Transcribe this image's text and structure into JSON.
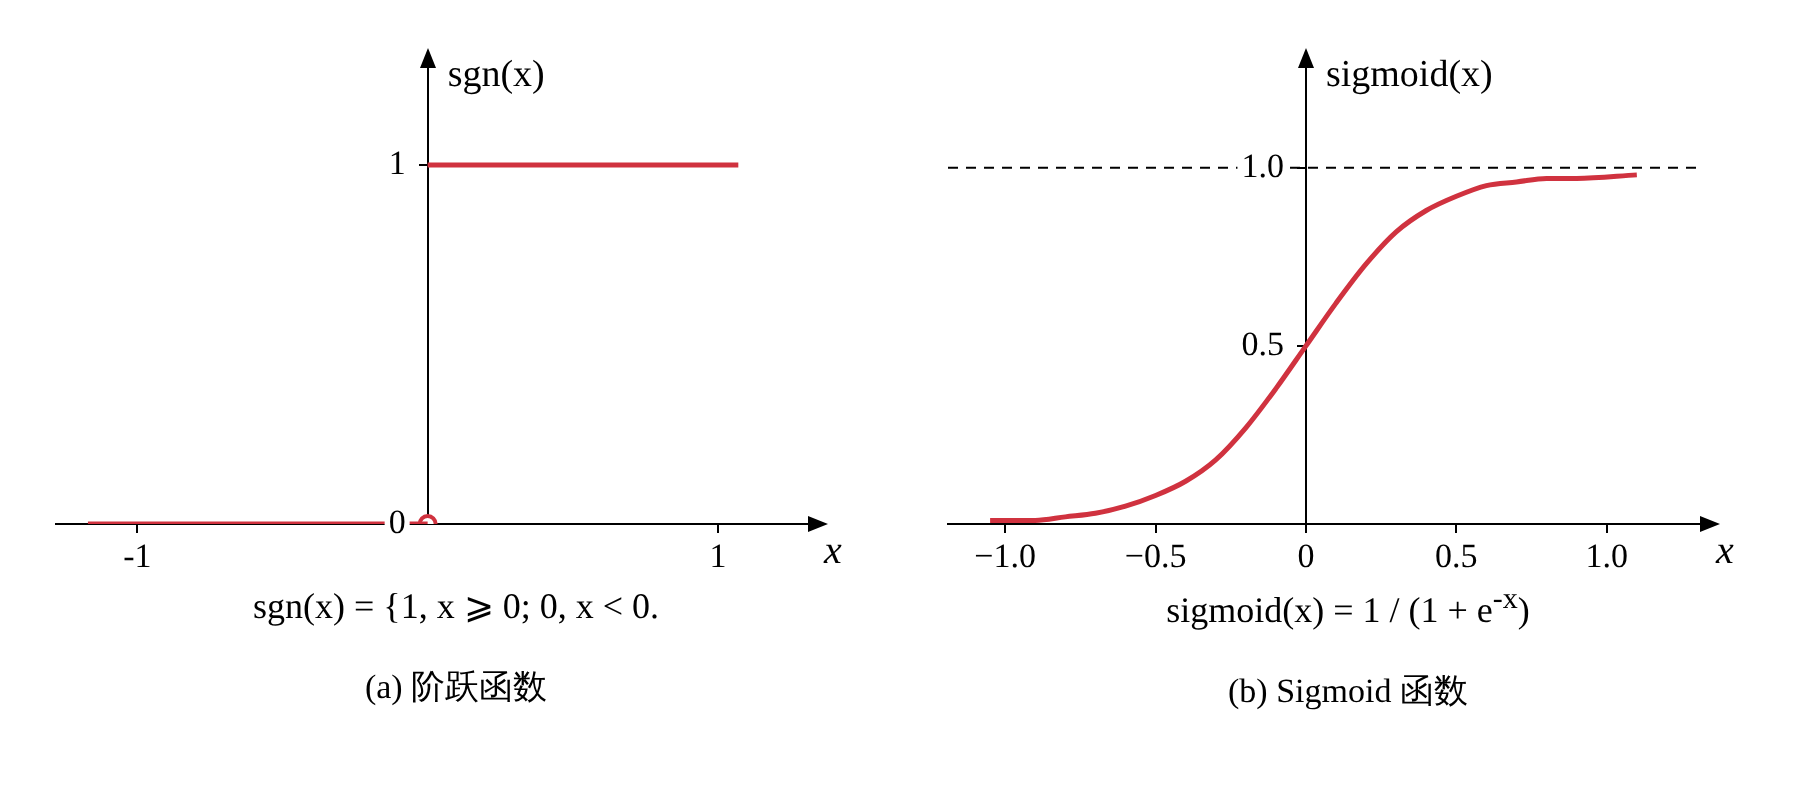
{
  "chart_data": [
    {
      "type": "line",
      "title": "(a) 阶跃函数",
      "xlabel": "x",
      "ylabel": "sgn(x)",
      "xlim": [
        -1.28,
        1.31
      ],
      "xticks": [
        -1,
        1
      ],
      "ylim": [
        0,
        1.27
      ],
      "yticks": [
        0,
        1
      ],
      "series": [
        {
          "color": "#d0323f",
          "x": [
            -1.17,
            0
          ],
          "values": [
            0,
            0
          ]
        },
        {
          "color": "#d0323f",
          "x": [
            0,
            1.07
          ],
          "values": [
            1,
            1
          ]
        },
        {
          "type": "scatter",
          "marker": "circle",
          "color": "#d0323f",
          "x": [
            0
          ],
          "values": [
            0
          ]
        }
      ],
      "annotations": [
        "sgn(x) = {1, x ⩾ 0; 0, x < 0."
      ],
      "grid": false,
      "legend": false
    },
    {
      "type": "line",
      "title": "(b) Sigmoid 函数",
      "xlabel": "x",
      "ylabel": "sigmoid(x)",
      "xlim": [
        -1.19,
        1.31
      ],
      "xticks": [
        {
          "value": -1,
          "label": "−1.0"
        },
        {
          "value": -0.5,
          "label": "−0.5"
        },
        0,
        0.5,
        {
          "value": 1,
          "label": "1.0"
        }
      ],
      "ylim": [
        0,
        1.28
      ],
      "yticks": [
        0.5,
        {
          "value": 1,
          "label": "1.0"
        }
      ],
      "series": [
        {
          "color": "#d0323f",
          "x": [
            -1.05,
            -0.9,
            -0.8,
            -0.7,
            -0.6,
            -0.5,
            -0.4,
            -0.3,
            -0.2,
            -0.1,
            0,
            0.1,
            0.2,
            0.3,
            0.4,
            0.5,
            0.6,
            0.7,
            0.8,
            0.9,
            1.1
          ],
          "values": [
            0.01,
            0.01,
            0.02,
            0.03,
            0.05,
            0.08,
            0.12,
            0.18,
            0.27,
            0.38,
            0.5,
            0.62,
            0.73,
            0.82,
            0.88,
            0.92,
            0.95,
            0.96,
            0.97,
            0.97,
            0.98
          ]
        }
      ],
      "ref_lines": [
        {
          "axis": "y",
          "value": 1,
          "color": "#000000",
          "line_style": "dashed"
        }
      ],
      "annotations": [
        "sigmoid(x) = 1 / (1 + e$^{-x}$)"
      ],
      "grid": false,
      "legend": false
    }
  ]
}
